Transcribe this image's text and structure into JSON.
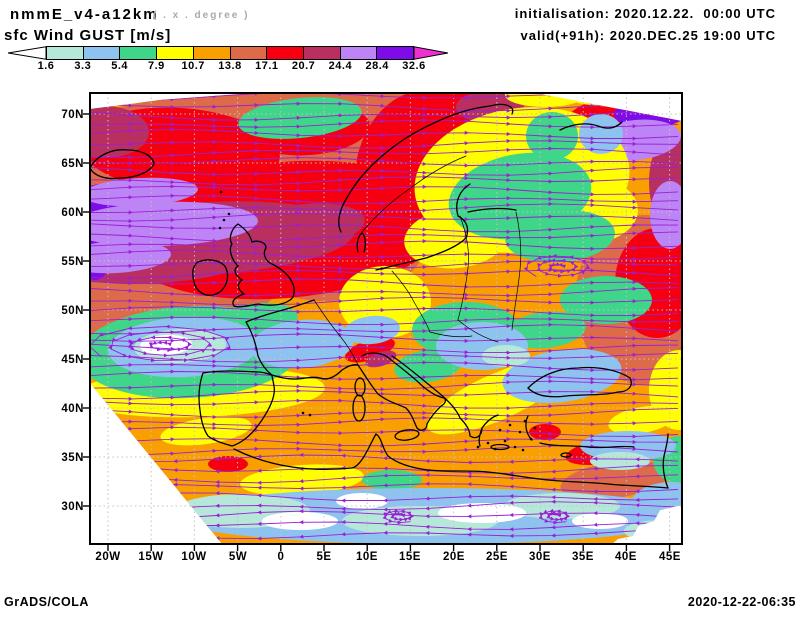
{
  "header": {
    "model": "nmmE_v4-a12km",
    "grid_note": "( . x . degree )",
    "field_title": "sfc Wind GUST [m/s]",
    "initialisation": "initialisation: 2020.12.22.  00:00 UTC",
    "valid": "valid(+91h): 2020.DEC.25 19:00 UTC"
  },
  "colorbar": {
    "levels": [
      "1.6",
      "3.3",
      "5.4",
      "7.9",
      "10.7",
      "13.8",
      "17.1",
      "20.7",
      "24.4",
      "28.4",
      "32.6"
    ],
    "segment_colors": [
      "#b6e8da",
      "#8fc3ef",
      "#3fd689",
      "#ffff00",
      "#f9a000",
      "#dd6b49",
      "#f60011",
      "#b92f60",
      "#bd84f6",
      "#7d0ce8"
    ],
    "under_color": "#ffffff",
    "over_color": "#ee2fd2"
  },
  "map": {
    "lat_labels": [
      "70N",
      "65N",
      "60N",
      "55N",
      "50N",
      "45N",
      "40N",
      "35N",
      "30N"
    ],
    "lon_labels": [
      "20W",
      "15W",
      "10W",
      "5W",
      "0",
      "5E",
      "10E",
      "15E",
      "20E",
      "25E",
      "30E",
      "35E",
      "40E",
      "45E"
    ],
    "streamline_color": "#9b1fd6",
    "coastline_color": "#000000",
    "graticule_color": "#c3c3c3"
  },
  "footer": {
    "left": "GrADS/COLA",
    "right": "2020-12-22-06:35"
  },
  "chart_data": {
    "type": "heatmap",
    "title": "sfc Wind GUST [m/s]",
    "model_run": "nmmE_v4-a12km",
    "initialisation": "2020.12.22. 00:00 UTC",
    "valid": "2020.DEC.25 19:00 UTC",
    "lead": "+91h",
    "units": "m/s",
    "contour_levels": [
      1.6,
      3.3,
      5.4,
      7.9,
      10.7,
      13.8,
      17.1,
      20.7,
      24.4,
      28.4,
      32.6
    ],
    "level_colors": [
      "#ffffff",
      "#b6e8da",
      "#8fc3ef",
      "#3fd689",
      "#ffff00",
      "#f9a000",
      "#dd6b49",
      "#f60011",
      "#b92f60",
      "#bd84f6",
      "#7d0ce8",
      "#ee2fd2"
    ],
    "x_ticks": [
      "20W",
      "15W",
      "10W",
      "5W",
      "0",
      "5E",
      "10E",
      "15E",
      "20E",
      "25E",
      "30E",
      "35E",
      "40E",
      "45E"
    ],
    "y_ticks": [
      "70N",
      "65N",
      "60N",
      "55N",
      "50N",
      "45N",
      "40N",
      "35N",
      "30N"
    ],
    "overlay": "wind streamlines with arrows",
    "legend_position": "top-left"
  }
}
